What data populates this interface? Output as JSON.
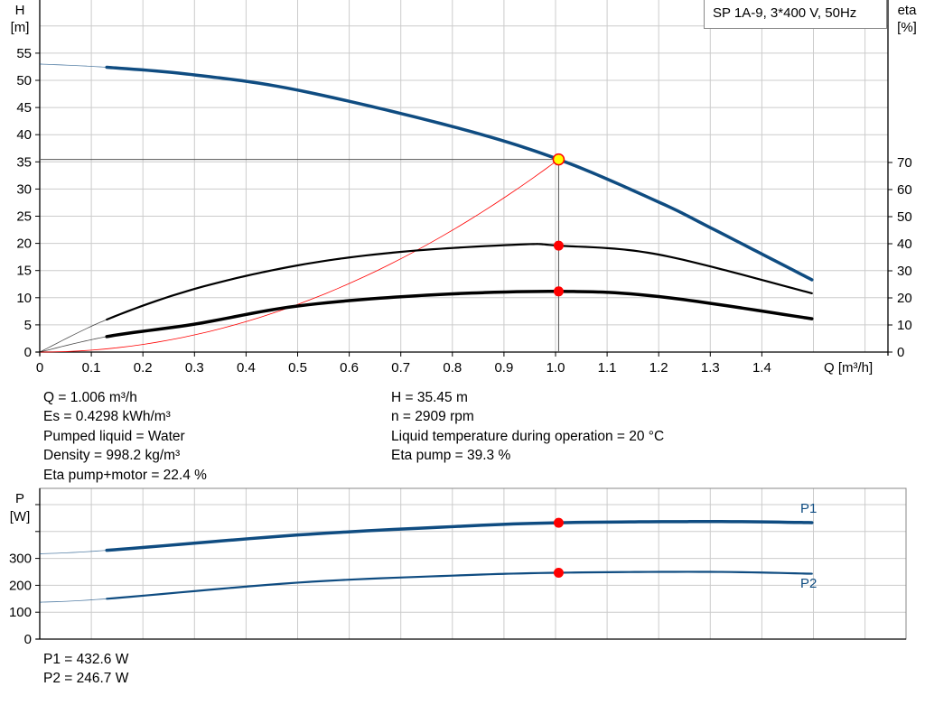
{
  "legend": "SP 1A-9, 3*400 V, 50Hz",
  "colors": {
    "head": "#0f4c81",
    "eta": "#000000",
    "system": "#ff0000",
    "power": "#0f4c81",
    "marker": "#ff0000",
    "duty_marker_fill": "#ffff00",
    "grid": "#cccccc"
  },
  "chart_data": [
    {
      "type": "line",
      "id": "head-eta",
      "xlabel": "Q [m³/h]",
      "ylabel": "H\n[m]",
      "ylabel_lines": [
        "H",
        "[m]"
      ],
      "y2label_lines": [
        "eta",
        "[%]"
      ],
      "xlim": [
        0,
        1.65
      ],
      "ylim": [
        0,
        65
      ],
      "y2lim": [
        0,
        130
      ],
      "xticks": [
        "0",
        "0.1",
        "0.2",
        "0.3",
        "0.4",
        "0.5",
        "0.6",
        "0.7",
        "0.8",
        "0.9",
        "1.0",
        "1.1",
        "1.2",
        "1.3",
        "1.4"
      ],
      "yticks": [
        "0",
        "5",
        "10",
        "15",
        "20",
        "25",
        "30",
        "35",
        "40",
        "45",
        "50",
        "55"
      ],
      "y2ticks": [
        "0",
        "10",
        "20",
        "30",
        "40",
        "50",
        "60",
        "70"
      ],
      "grid": true,
      "series": [
        {
          "key": "H",
          "axis": "left",
          "thin_until": 0.13,
          "width": 3.5,
          "x": [
            0,
            0.13,
            0.3,
            0.5,
            0.8,
            1.006,
            1.2,
            1.3,
            1.497
          ],
          "y": [
            53.0,
            52.4,
            51.0,
            48.2,
            41.5,
            35.45,
            27.6,
            22.9,
            13.3
          ]
        },
        {
          "key": "eta_pump",
          "axis": "right",
          "thin_until": 0.13,
          "width": 2.2,
          "x": [
            0,
            0.13,
            0.3,
            0.5,
            0.7,
            0.93,
            1.006,
            1.2,
            1.497
          ],
          "y": [
            0,
            12.0,
            23.3,
            32.0,
            37.0,
            39.7,
            39.3,
            36.0,
            21.7
          ]
        },
        {
          "key": "eta_total",
          "axis": "right",
          "thin_until": 0.13,
          "width": 3.5,
          "x": [
            0,
            0.13,
            0.3,
            0.5,
            0.75,
            1.006,
            1.2,
            1.497
          ],
          "y": [
            0,
            5.7,
            10.3,
            17.0,
            21.0,
            22.4,
            20.5,
            12.3
          ]
        },
        {
          "key": "system",
          "axis": "left",
          "type": "quadratic",
          "width": 0.8,
          "x_end": 1.006,
          "y_end": 35.45
        }
      ],
      "duty_point": {
        "q": 1.006,
        "h": 35.45,
        "eta_pump": 39.3,
        "eta_total": 22.4
      }
    },
    {
      "type": "line",
      "id": "power",
      "ylabel_lines": [
        "P",
        "[W]"
      ],
      "xlim": [
        0,
        1.65
      ],
      "ylim": [
        0,
        560
      ],
      "yticks": [
        "0",
        "100",
        "200",
        "300"
      ],
      "grid": true,
      "series": [
        {
          "name": "P1",
          "thin_until": 0.13,
          "width": 3.5,
          "x": [
            0,
            0.13,
            0.5,
            0.8,
            1.006,
            1.3,
            1.497
          ],
          "y": [
            317,
            330,
            387,
            418,
            432.6,
            437,
            433
          ]
        },
        {
          "name": "P2",
          "thin_until": 0.13,
          "width": 2.2,
          "x": [
            0,
            0.13,
            0.5,
            0.8,
            1.006,
            1.3,
            1.497
          ],
          "y": [
            137,
            150,
            210,
            236,
            246.7,
            250,
            243
          ]
        }
      ],
      "duty_point": {
        "q": 1.006,
        "p1": 432.6,
        "p2": 246.7
      }
    }
  ],
  "info": {
    "left": [
      "Q = 1.006 m³/h",
      "Es = 0.4298 kWh/m³",
      "Pumped liquid = Water",
      "Density = 998.2 kg/m³",
      "Eta pump+motor = 22.4 %"
    ],
    "right": [
      "H = 35.45 m",
      "n = 2909 rpm",
      "Liquid temperature during operation = 20 °C",
      "Eta pump = 39.3 %"
    ],
    "power": [
      "P1 = 432.6 W",
      "P2 = 246.7 W"
    ]
  }
}
